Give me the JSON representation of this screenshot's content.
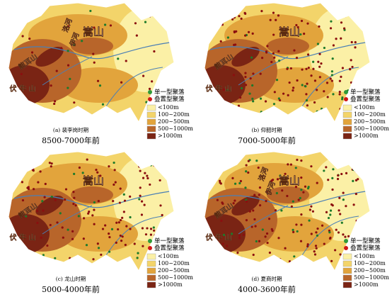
{
  "legend": {
    "single": "单一型聚落",
    "overlay": "叠置型聚落",
    "classes": [
      {
        "label": "<100m",
        "color": "#fbf0a6"
      },
      {
        "label": "100~200m",
        "color": "#f3d46a"
      },
      {
        "label": "200~500m",
        "color": "#e2a43c"
      },
      {
        "label": "500~1000m",
        "color": "#b8652a"
      },
      {
        "label": ">1000m",
        "color": "#7a2414"
      }
    ]
  },
  "panels": [
    {
      "caption": "(a) 裴李岗时期",
      "period": "8500-7000年前",
      "labels": {
        "songshan": "嵩山",
        "luohe": "洛河",
        "yihe": "伊河",
        "xiongershan": "熊耳山",
        "funiushan": "伏 牛 山"
      }
    },
    {
      "caption": "(b) 仰韶时期",
      "period": "7000-5000年前",
      "labels": {
        "songshan": "嵩山",
        "xiongershan": "熊耳山",
        "funiushan": "伏 牛 山"
      }
    },
    {
      "caption": "(c) 龙山时期",
      "period": "5000-4000年前",
      "labels": {
        "songshan": "嵩山",
        "xiongershan": "熊耳山",
        "funiushan": "伏 牛 山"
      }
    },
    {
      "caption": "(d) 夏商时期",
      "period": "4000-3600年前",
      "labels": {
        "songshan": "嵩山",
        "luohe": "洛河",
        "yihe": "伊河",
        "xiongershan": "熊耳山",
        "funiushan": "伏 牛 山"
      }
    }
  ]
}
